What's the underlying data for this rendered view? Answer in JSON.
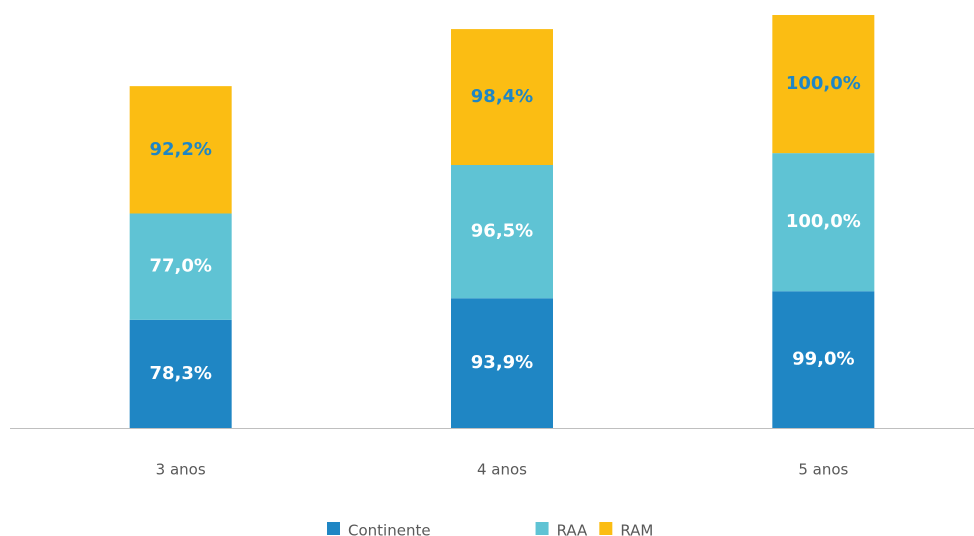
{
  "chart_data": {
    "type": "stacked_bar",
    "categories": [
      "3 anos",
      "4 anos",
      "5 anos"
    ],
    "series": [
      {
        "name": "Continente",
        "color": "#1f86c4",
        "values": [
          78.3,
          93.9,
          99.0
        ],
        "value_labels": [
          "78,3%",
          "93,9%",
          "99,0%"
        ]
      },
      {
        "name": "RAA",
        "color": "#5fc3d4",
        "values": [
          77.0,
          96.5,
          100.0
        ],
        "value_labels": [
          "77,0%",
          "96,5%",
          "100,0%"
        ]
      },
      {
        "name": "RAM",
        "color": "#fbbd13",
        "values": [
          92.2,
          98.4,
          100.0
        ],
        "value_labels": [
          "92,2%",
          "98,4%",
          "100,0%"
        ]
      }
    ]
  }
}
